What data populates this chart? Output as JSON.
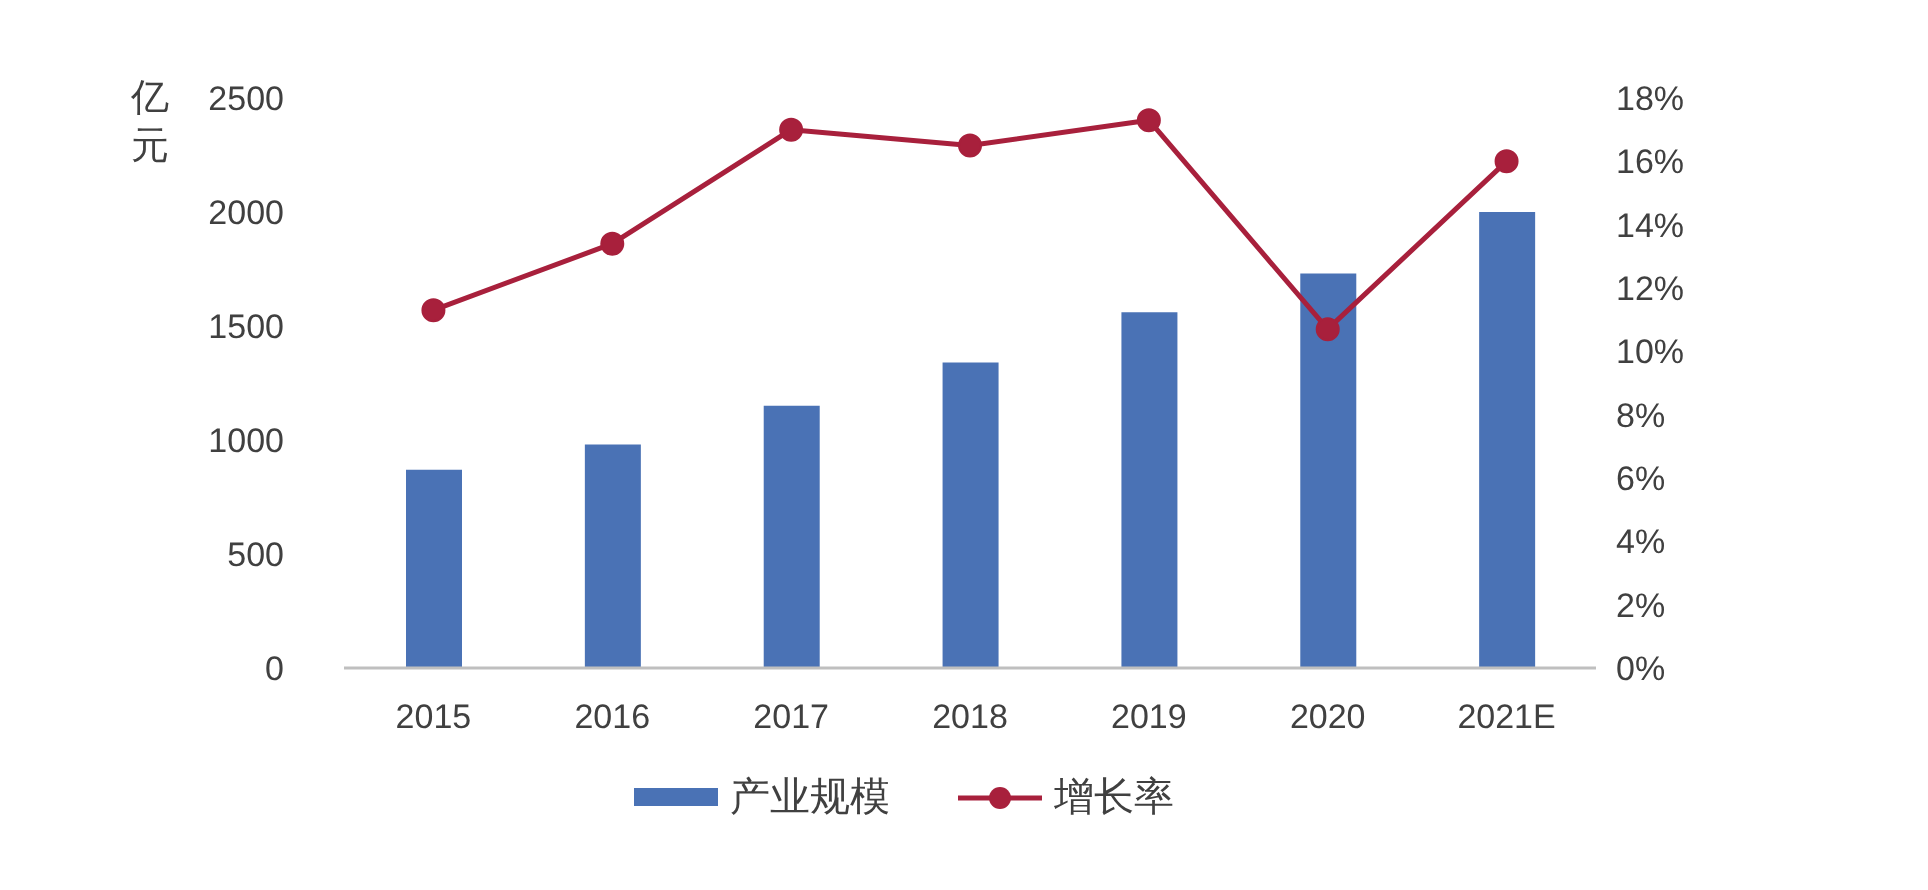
{
  "chart_data": {
    "type": "bar",
    "ylabel": "亿元",
    "categories": [
      "2015",
      "2016",
      "2017",
      "2018",
      "2019",
      "2020",
      "2021E"
    ],
    "series": [
      {
        "name": "产业规模",
        "color": "#4a72b5",
        "values": [
          870,
          980,
          1150,
          1340,
          1560,
          1730,
          2000
        ]
      },
      {
        "name": "增长率",
        "type": "line",
        "axis": "y2",
        "color": "#a8203c",
        "values": [
          11.3,
          13.4,
          17.0,
          16.5,
          17.3,
          10.7,
          16.0
        ]
      }
    ],
    "ylim": [
      0,
      2500
    ],
    "yticks": [
      0,
      500,
      1000,
      1500,
      2000,
      2500
    ],
    "y2lim": [
      0,
      18
    ],
    "y2ticks": [
      {
        "value": 0,
        "label": "0%"
      },
      {
        "value": 2,
        "label": "2%"
      },
      {
        "value": 4,
        "label": "4%"
      },
      {
        "value": 6,
        "label": "6%"
      },
      {
        "value": 8,
        "label": "8%"
      },
      {
        "value": 10,
        "label": "10%"
      },
      {
        "value": 12,
        "label": "12%"
      },
      {
        "value": 14,
        "label": "14%"
      },
      {
        "value": 16,
        "label": "16%"
      },
      {
        "value": 18,
        "label": "18%"
      }
    ],
    "marker": "circle",
    "legend": "bottom",
    "grid": false
  }
}
